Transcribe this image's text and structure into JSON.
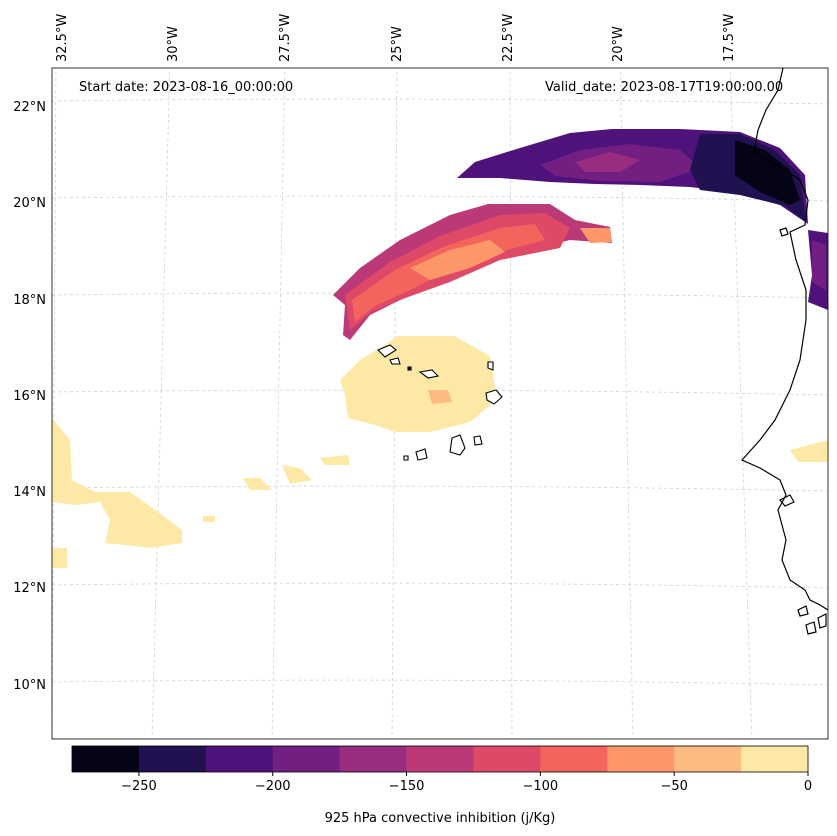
{
  "header": {
    "start_date": "Start date: 2023-08-16_00:00:00",
    "valid_date": "Valid_date: 2023-08-17T19:00:00.00"
  },
  "axes": {
    "lon_labels": [
      "32.5°W",
      "30°W",
      "27.5°W",
      "25°W",
      "22.5°W",
      "20°W",
      "17.5°W"
    ],
    "lat_labels": [
      "22°N",
      "20°N",
      "18°N",
      "16°N",
      "14°N",
      "12°N",
      "10°N"
    ]
  },
  "colorbar": {
    "label": "925 hPa convective inhibition (j/Kg)",
    "tick_labels": [
      "−250",
      "−200",
      "−150",
      "−100",
      "−50",
      "0"
    ],
    "colors": [
      "#050416",
      "#221150",
      "#4f127b",
      "#721f81",
      "#982d80",
      "#bc3978",
      "#de4968",
      "#f3655c",
      "#fd9668",
      "#febb81",
      "#fde8a6"
    ]
  },
  "map_data": {
    "type": "filled-contour-map",
    "projection": "lambert-conformal",
    "variable": "925 hPa convective inhibition",
    "units": "j/Kg",
    "levels": [
      -275,
      -250,
      -225,
      -200,
      -175,
      -150,
      -125,
      -100,
      -75,
      -50,
      -25,
      0
    ],
    "extent": {
      "lon_min": -33.5,
      "lon_max": -15.8,
      "lat_min": 9.0,
      "lat_max": 22.6
    },
    "features": [
      "Cape Verde islands",
      "West African coastline"
    ]
  }
}
